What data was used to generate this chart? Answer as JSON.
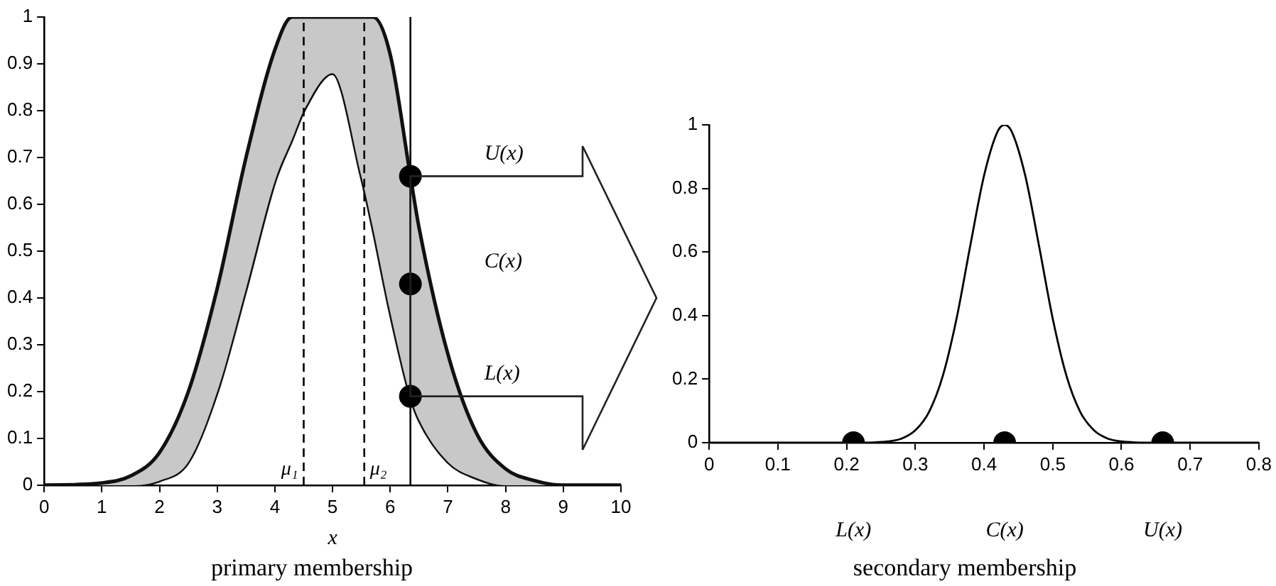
{
  "chart_data": [
    {
      "type": "line",
      "title": "primary membership",
      "xlabel": "x",
      "x": [
        0,
        1,
        1.5,
        2,
        2.5,
        3,
        3.5,
        4,
        4.3,
        4.5,
        5,
        5.5,
        5.7,
        6,
        6.35,
        6.5,
        7,
        7.5,
        8,
        8.5,
        9,
        10
      ],
      "series": [
        {
          "type": "area",
          "color": "#c8c8c8",
          "values": [
            0,
            0.005,
            0.02,
            0.07,
            0.2,
            0.42,
            0.7,
            0.93,
            1,
            1,
            1,
            1,
            1,
            0.92,
            0.66,
            0.55,
            0.28,
            0.11,
            0.035,
            0.01,
            0,
            0
          ]
        },
        {
          "type": "line",
          "color": "#111111",
          "values": [
            0,
            0,
            0,
            0.01,
            0.05,
            0.2,
            0.42,
            0.65,
            0.74,
            0.8,
            0.88,
            0.66,
            0.55,
            0.37,
            0.19,
            0.14,
            0.05,
            0.015,
            0,
            0,
            0,
            0
          ]
        },
        {
          "type": "scatter",
          "color": "#000000",
          "x": [
            6.35,
            6.35,
            6.35
          ],
          "values": [
            0.66,
            0.43,
            0.19
          ]
        }
      ],
      "xlim": [
        0,
        10
      ],
      "ylim": [
        0,
        1
      ],
      "xticks": [
        0,
        1,
        2,
        3,
        4,
        5,
        6,
        7,
        8,
        9,
        10
      ],
      "yticks": [
        0,
        0.1,
        0.2,
        0.3,
        0.4,
        0.5,
        0.6,
        0.7,
        0.8,
        0.9,
        1
      ],
      "ref_lines": [
        {
          "axis": "x",
          "value": 4.5,
          "label": "μ₁",
          "line_style": "dashed"
        },
        {
          "axis": "x",
          "value": 5.55,
          "label": "μ₂",
          "line_style": "dashed"
        },
        {
          "axis": "x",
          "value": 6.35,
          "line_style": "solid"
        }
      ],
      "annotations": [
        "U(x)",
        "C(x)",
        "L(x)"
      ],
      "line_style": "solid",
      "grid": false,
      "legend": false
    },
    {
      "type": "line",
      "title": "secondary membership",
      "x": [
        0,
        0.1,
        0.2,
        0.24,
        0.26,
        0.28,
        0.3,
        0.32,
        0.34,
        0.36,
        0.38,
        0.4,
        0.42,
        0.43,
        0.44,
        0.46,
        0.48,
        0.5,
        0.52,
        0.54,
        0.56,
        0.58,
        0.6,
        0.62,
        0.66,
        0.7,
        0.8
      ],
      "series": [
        {
          "type": "line",
          "color": "#000000",
          "values": [
            0,
            0,
            0,
            0.001,
            0.004,
            0.013,
            0.039,
            0.097,
            0.21,
            0.39,
            0.62,
            0.84,
            0.98,
            1,
            0.98,
            0.84,
            0.62,
            0.39,
            0.21,
            0.097,
            0.039,
            0.013,
            0.004,
            0.001,
            0,
            0,
            0
          ]
        },
        {
          "type": "scatter",
          "color": "#000000",
          "x": [
            0.21,
            0.43,
            0.66
          ],
          "values": [
            0,
            0,
            0
          ]
        }
      ],
      "xlim": [
        0,
        0.8
      ],
      "ylim": [
        0,
        1
      ],
      "xticks": [
        0,
        0.1,
        0.2,
        0.3,
        0.4,
        0.5,
        0.6,
        0.7,
        0.8
      ],
      "yticks": [
        0,
        0.2,
        0.4,
        0.6,
        0.8,
        1
      ],
      "annotations": [
        "L(x)",
        "C(x)",
        "U(x)"
      ],
      "line_style": "solid",
      "grid": false,
      "legend": false
    }
  ]
}
